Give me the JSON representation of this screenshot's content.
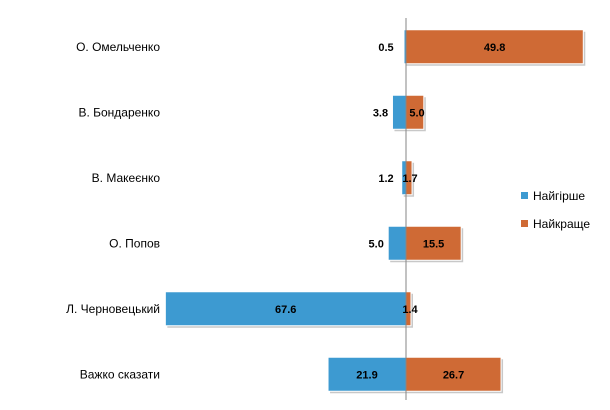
{
  "chart_data": {
    "type": "bar",
    "orientation": "horizontal-diverging",
    "categories": [
      "О. Омельченко",
      "В. Бондаренко",
      "В. Макеєнко",
      "О. Попов",
      "Л. Черновецький",
      "Важко сказати"
    ],
    "series": [
      {
        "name": "Найгірше",
        "values": [
          0.5,
          3.8,
          1.2,
          5.0,
          67.6,
          21.9
        ],
        "labels": [
          "0.5",
          "3.8",
          "1.2",
          "5.0",
          "67.6",
          "21.9"
        ],
        "color": "#3d9ad1",
        "direction": "left"
      },
      {
        "name": "Найкраще",
        "values": [
          49.8,
          5.0,
          1.7,
          15.5,
          1.4,
          26.7
        ],
        "labels": [
          "49.8",
          "5.0",
          "1.7",
          "15.5",
          "1.4",
          "26.7"
        ],
        "color": "#cf6a35",
        "direction": "right"
      }
    ],
    "legend_position": "right",
    "grid": false,
    "title": "",
    "xlabel": "",
    "ylabel": ""
  }
}
